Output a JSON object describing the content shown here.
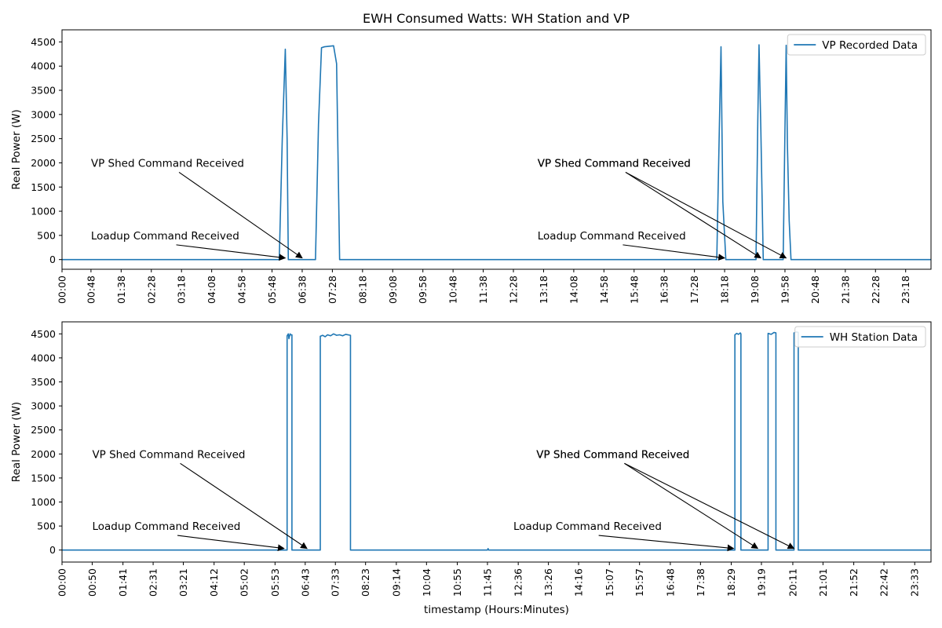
{
  "figure": {
    "title": "EWH Consumed Watts: WH Station and VP"
  },
  "colors": {
    "series": "#1f77b4",
    "axis": "#000000",
    "legend_border": "#cccccc"
  },
  "chart_data": [
    {
      "type": "line",
      "title": "EWH Consumed Watts: WH Station and VP",
      "xlabel": "",
      "ylabel": "Real Power (W)",
      "xlim": [
        "00:00",
        "24:00"
      ],
      "ylim": [
        -200,
        4750
      ],
      "yticks": [
        0,
        500,
        1000,
        1500,
        2000,
        2500,
        3000,
        3500,
        4000,
        4500
      ],
      "xticks": [
        "00:00",
        "00:48",
        "01:38",
        "02:28",
        "03:18",
        "04:08",
        "04:58",
        "05:48",
        "06:38",
        "07:28",
        "08:18",
        "09:08",
        "09:58",
        "10:48",
        "11:38",
        "12:28",
        "13:18",
        "14:08",
        "14:58",
        "15:48",
        "16:38",
        "17:28",
        "18:18",
        "19:08",
        "19:58",
        "20:48",
        "21:38",
        "22:28",
        "23:18"
      ],
      "grid": false,
      "legend": "upper right",
      "series": [
        {
          "name": "VP Recorded Data",
          "x": [
            "00:00",
            "06:00",
            "06:05",
            "06:10",
            "06:13",
            "06:15",
            "06:18",
            "06:20",
            "07:00",
            "07:05",
            "07:10",
            "07:15",
            "07:30",
            "07:35",
            "07:40",
            "18:05",
            "18:10",
            "18:12",
            "18:15",
            "18:20",
            "18:30",
            "19:10",
            "19:13",
            "19:15",
            "19:18",
            "19:22",
            "19:25",
            "19:30",
            "19:55",
            "19:58",
            "20:00",
            "20:02",
            "20:05",
            "20:08",
            "20:10",
            "24:00"
          ],
          "values": [
            0,
            0,
            2500,
            4350,
            2500,
            0,
            0,
            0,
            0,
            2800,
            4380,
            4400,
            4420,
            4050,
            0,
            0,
            3200,
            4400,
            1200,
            0,
            0,
            0,
            2900,
            4440,
            2700,
            0,
            0,
            0,
            0,
            2700,
            4430,
            2400,
            800,
            0,
            0,
            0
          ]
        }
      ],
      "annotations": [
        {
          "text": "VP Shed Command Received",
          "text_x": "00:48",
          "text_y": 2000,
          "target_x": "06:38",
          "target_y": 0
        },
        {
          "text": "Loadup Command Received",
          "text_x": "00:48",
          "text_y": 500,
          "target_x": "06:10",
          "target_y": 0
        },
        {
          "text": "VP Shed Command Received",
          "text_x": "13:08",
          "text_y": 2000,
          "target_x": "19:18",
          "target_y": 0
        },
        {
          "text": "VP Shed Command Received",
          "text_x": "13:08",
          "text_y": 2000,
          "target_x": "20:00",
          "target_y": 0
        },
        {
          "text": "Loadup Command Received",
          "text_x": "13:08",
          "text_y": 500,
          "target_x": "18:18",
          "target_y": 0
        }
      ]
    },
    {
      "type": "line",
      "title": "",
      "xlabel": "timestamp (Hours:Minutes)",
      "ylabel": "Real Power (W)",
      "xlim": [
        "00:00",
        "24:00"
      ],
      "ylim": [
        -250,
        4750
      ],
      "yticks": [
        0,
        500,
        1000,
        1500,
        2000,
        2500,
        3000,
        3500,
        4000,
        4500
      ],
      "xticks": [
        "00:00",
        "00:50",
        "01:41",
        "02:31",
        "03:21",
        "04:12",
        "05:02",
        "05:53",
        "06:43",
        "07:33",
        "08:23",
        "09:14",
        "10:04",
        "10:55",
        "11:45",
        "12:36",
        "13:26",
        "14:16",
        "15:07",
        "15:57",
        "16:48",
        "17:38",
        "18:29",
        "19:19",
        "20:11",
        "21:01",
        "21:52",
        "22:42",
        "23:33"
      ],
      "grid": false,
      "legend": "upper right",
      "series": [
        {
          "name": "WH Station Data",
          "x": [
            "00:00",
            "06:13",
            "06:13",
            "06:15",
            "06:16",
            "06:18",
            "06:19",
            "06:21",
            "06:21",
            "07:08",
            "07:08",
            "07:12",
            "07:16",
            "07:20",
            "07:25",
            "07:30",
            "07:35",
            "07:40",
            "07:45",
            "07:50",
            "07:58",
            "07:58",
            "11:45",
            "11:46",
            "11:47",
            "18:35",
            "18:35",
            "18:38",
            "18:41",
            "18:44",
            "18:45",
            "18:45",
            "19:30",
            "19:30",
            "19:35",
            "19:40",
            "19:43",
            "19:43",
            "20:13",
            "20:13",
            "20:17",
            "20:20",
            "20:20",
            "24:00"
          ],
          "values": [
            0,
            0,
            4460,
            4500,
            4400,
            4500,
            4480,
            4480,
            0,
            0,
            4450,
            4470,
            4440,
            4480,
            4460,
            4500,
            4470,
            4480,
            4460,
            4490,
            4470,
            0,
            0,
            30,
            0,
            0,
            4480,
            4510,
            4490,
            4520,
            4500,
            0,
            0,
            4510,
            4490,
            4530,
            4520,
            0,
            0,
            4520,
            4540,
            4530,
            0,
            0
          ]
        }
      ],
      "annotations": [
        {
          "text": "VP Shed Command Received",
          "text_x": "00:50",
          "text_y": 2000,
          "target_x": "06:46",
          "target_y": 0
        },
        {
          "text": "Loadup Command Received",
          "text_x": "00:50",
          "text_y": 500,
          "target_x": "06:08",
          "target_y": 0
        },
        {
          "text": "VP Shed Command Received",
          "text_x": "13:06",
          "text_y": 2000,
          "target_x": "19:13",
          "target_y": 0
        },
        {
          "text": "VP Shed Command Received",
          "text_x": "13:06",
          "text_y": 2000,
          "target_x": "20:13",
          "target_y": 0
        },
        {
          "text": "Loadup Command Received",
          "text_x": "12:28",
          "text_y": 500,
          "target_x": "18:33",
          "target_y": 0
        }
      ]
    }
  ]
}
